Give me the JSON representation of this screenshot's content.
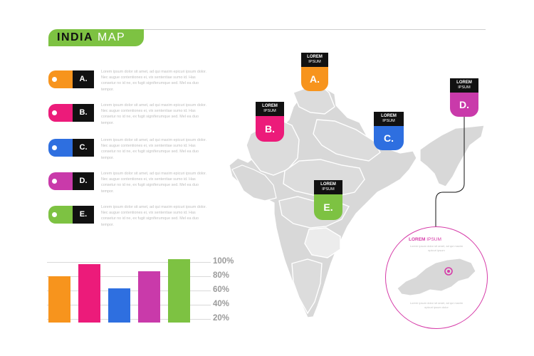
{
  "header": {
    "title_bold": "INDIA",
    "title_light": "MAP"
  },
  "colors": {
    "orange": "#f7941d",
    "pink": "#ec1b7a",
    "blue": "#2e6fe0",
    "magenta": "#c93aaa",
    "green": "#7dc242",
    "map_gray": "#d8d8d8"
  },
  "legend": [
    {
      "letter": "A.",
      "color": "#f7941d",
      "text": "Lorem ipsum dolor sit amet, ad qui maxim epicuri ipsum dolor. Nec augue contentiones ei, vix sententiae sumo id. Has consetur no id ne, ex fugit signiferumque sed. Mel ea duo tempor."
    },
    {
      "letter": "B.",
      "color": "#ec1b7a",
      "text": "Lorem ipsum dolor sit amet, ad qui maxim epicuri ipsum dolor. Nec augue contentiones ei, vix sententiae sumo id. Has consetur no id ne, ex fugit signiferumque sed. Mel ea duo tempor."
    },
    {
      "letter": "C.",
      "color": "#2e6fe0",
      "text": "Lorem ipsum dolor sit amet, ad qui maxim epicuri ipsum dolor. Nec augue contentiones ei, vix sententiae sumo id. Has consetur no id ne, ex fugit signiferumque sed. Mel ea duo tempor."
    },
    {
      "letter": "D.",
      "color": "#c93aaa",
      "text": "Lorem ipsum dolor sit amet, ad qui maxim epicuri ipsum dolor. Nec augue contentiones ei, vix sententiae sumo id. Has consetur no id ne, ex fugit signiferumque sed. Mel ea duo tempor."
    },
    {
      "letter": "E.",
      "color": "#7dc242",
      "text": "Lorem ipsum dolor sit amet, ad qui maxim epicuri ipsum dolor. Nec augue contentiones ei, vix sententiae sumo id. Has consetur no id ne, ex fugit signiferumque sed. Mel ea duo tempor."
    }
  ],
  "chart_data": {
    "type": "bar",
    "categories": [
      "A.",
      "B.",
      "C.",
      "D.",
      "E."
    ],
    "values": [
      80,
      97,
      63,
      87,
      104
    ],
    "colors": [
      "#f7941d",
      "#ec1b7a",
      "#2e6fe0",
      "#c93aaa",
      "#7dc242"
    ],
    "ticks": [
      "100%",
      "80%",
      "60%",
      "40%",
      "20%"
    ],
    "tick_values": [
      100,
      80,
      60,
      40,
      20
    ],
    "ylim": [
      10,
      110
    ],
    "grid": true
  },
  "markers": [
    {
      "letter": "A.",
      "line1": "LOREM",
      "line2": "IPSUM",
      "color": "#f7941d"
    },
    {
      "letter": "B.",
      "line1": "LOREM",
      "line2": "IPSUM",
      "color": "#ec1b7a"
    },
    {
      "letter": "C.",
      "line1": "LOREM",
      "line2": "IPSUM",
      "color": "#2e6fe0"
    },
    {
      "letter": "D.",
      "line1": "LOREM",
      "line2": "IPSUM",
      "color": "#c93aaa"
    },
    {
      "letter": "E.",
      "line1": "LOREM",
      "line2": "IPSUM",
      "color": "#7dc242"
    }
  ],
  "inset": {
    "title_bold": "LOREM",
    "title_light": "IPSUM",
    "lorem_top": "Lorem ipsum dolor sit amet, ad qui maxim epicuri ipsum",
    "lorem_bottom": "Lorem ipsum dolor sit amet, ad qui maxim epicuri ipsum dolor"
  }
}
